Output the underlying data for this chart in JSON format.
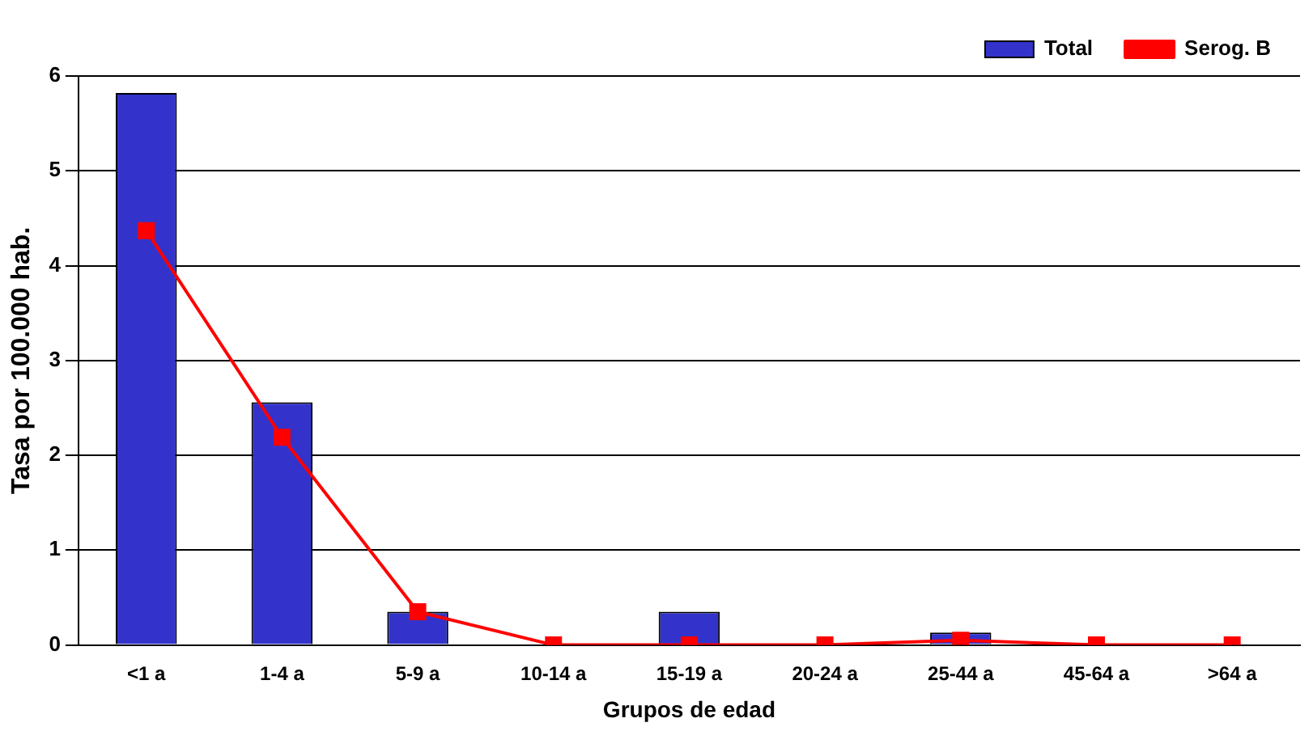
{
  "chart_data": {
    "type": "bar",
    "xlabel": "Grupos de edad",
    "ylabel": "Tasa por 100.000 hab.",
    "categories": [
      "<1 a",
      "1-4 a",
      "5-9 a",
      "10-14 a",
      "15-19 a",
      "20-24 a",
      "25-44 a",
      "45-64 a",
      ">64 a"
    ],
    "series": [
      {
        "name": "Total",
        "color": "#3333cc",
        "values": [
          5.82,
          2.56,
          0.35,
          0,
          0.35,
          0,
          0.13,
          0,
          0
        ]
      },
      {
        "name": "Serog. B",
        "type": "line",
        "color": "#ff0000",
        "values": [
          4.37,
          2.19,
          0.35,
          0,
          0,
          0,
          0.05,
          0,
          0
        ]
      }
    ],
    "ylim": [
      0,
      6
    ],
    "yticks": [
      0,
      1,
      2,
      3,
      4,
      5,
      6
    ],
    "grid": "y",
    "legend": "top right",
    "marker": "square",
    "line_style": "solid"
  }
}
